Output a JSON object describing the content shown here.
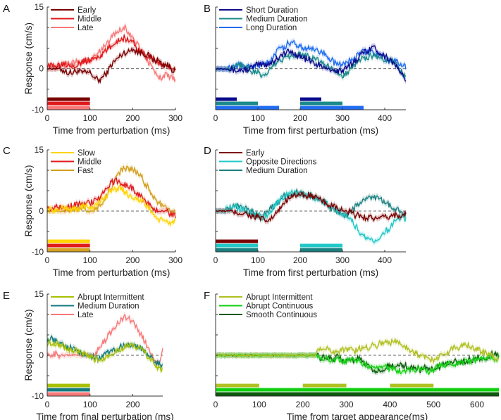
{
  "chart_data": [
    {
      "id": "A",
      "type": "line",
      "panel_label": "A",
      "xlabel": "Time from perturbation (ms)",
      "ylabel": "Response (cm/s)",
      "xlim": [
        0,
        300
      ],
      "ylim": [
        -10,
        15
      ],
      "x_step": 10,
      "xticks": [
        0,
        100,
        200,
        300
      ],
      "yticks": [
        -10,
        -5,
        0,
        5,
        10,
        15
      ],
      "ytick_labels": [
        "-10",
        "",
        "0",
        "",
        "",
        "15"
      ],
      "legend_position": "top-left",
      "series": [
        {
          "name": "Early",
          "color": "#7a0000",
          "values": [
            0,
            0,
            0,
            0,
            -0.5,
            -1,
            -1,
            -0.5,
            -1,
            -1,
            -1,
            -2,
            -3,
            -2,
            -1,
            1,
            2,
            3,
            4,
            4,
            5,
            4,
            4,
            3.5,
            3,
            2,
            2,
            1,
            1,
            0,
            -0.5
          ],
          "bars": [
            [
              0,
              100
            ]
          ]
        },
        {
          "name": "Middle",
          "color": "#e0191b",
          "values": [
            1,
            0.5,
            1,
            1,
            1.5,
            1,
            1,
            1,
            1.5,
            2,
            2,
            2.5,
            3,
            3.5,
            4.5,
            5.5,
            6.5,
            7,
            7.5,
            7,
            6.5,
            5,
            4,
            3.5,
            3,
            2,
            1.5,
            1,
            0.5,
            0,
            -1
          ],
          "bars": [
            [
              0,
              100
            ]
          ]
        },
        {
          "name": "Late",
          "color": "#f87878",
          "values": [
            0,
            0,
            0.5,
            0.5,
            1,
            1,
            1.5,
            1.5,
            1.5,
            2,
            2,
            3,
            4,
            5,
            6,
            7.5,
            8.5,
            9.5,
            10,
            9,
            8,
            6,
            4.5,
            3,
            1,
            -1,
            -2,
            -2,
            -1.5,
            -2,
            -2.5
          ],
          "bars": [
            [
              0,
              100
            ]
          ]
        }
      ]
    },
    {
      "id": "B",
      "type": "line",
      "panel_label": "B",
      "xlabel": "Time from first perturbation (ms)",
      "ylabel": "",
      "xlim": [
        0,
        450
      ],
      "ylim": [
        -10,
        15
      ],
      "x_step": 10,
      "xticks": [
        0,
        100,
        200,
        300,
        400
      ],
      "yticks": [
        -10,
        -5,
        0,
        5,
        10,
        15
      ],
      "ytick_labels": [
        "",
        "",
        "",
        "",
        "",
        ""
      ],
      "legend_position": "top-left",
      "series": [
        {
          "name": "Short Duration",
          "color": "#0a0a8c",
          "values": [
            0,
            0,
            0,
            0,
            -0.3,
            -0.5,
            -0.3,
            -0.3,
            0,
            0.5,
            1,
            1,
            1,
            1.5,
            2,
            3,
            3.5,
            4,
            4,
            3.5,
            3,
            2.5,
            2,
            1.5,
            1,
            0.5,
            0,
            0,
            -0.5,
            -0.5,
            -0.5,
            0,
            1,
            2,
            3,
            4,
            4.5,
            5.5,
            4.5,
            4,
            3,
            2.5,
            1.5,
            0,
            -1,
            -3.5
          ],
          "bars": [
            [
              0,
              50
            ],
            [
              200,
              250
            ]
          ]
        },
        {
          "name": "Medium Duration",
          "color": "#1a8a8a",
          "values": [
            0,
            0,
            0,
            0,
            0.5,
            1,
            1,
            0.5,
            0,
            -1,
            -1,
            -2,
            -1,
            0,
            1,
            2,
            2.5,
            3,
            3.5,
            3.5,
            3.5,
            3,
            3,
            2.5,
            2,
            1.5,
            1,
            0,
            -0.5,
            -1,
            -1.5,
            -1,
            0,
            1,
            2,
            2.5,
            3,
            3,
            3,
            2.5,
            2,
            2,
            1.5,
            0.5,
            -0.5,
            -2.5
          ],
          "bars": [
            [
              0,
              100
            ],
            [
              200,
              300
            ]
          ]
        },
        {
          "name": "Long Duration",
          "color": "#1f6cf0",
          "values": [
            0,
            0,
            0,
            0,
            0.5,
            1,
            1,
            0.5,
            0.5,
            0.5,
            0.5,
            1,
            1.5,
            2,
            3.5,
            4.5,
            5,
            6,
            6,
            6,
            5.5,
            5,
            5,
            4.5,
            4.5,
            4,
            3.5,
            2.5,
            1.5,
            1,
            1,
            1.5,
            2,
            3,
            3.5,
            4,
            4,
            4,
            3.5,
            3,
            2.5,
            2,
            2,
            1.5,
            1,
            0.5
          ],
          "bars": [
            [
              0,
              150
            ],
            [
              200,
              350
            ]
          ]
        }
      ]
    },
    {
      "id": "C",
      "type": "line",
      "panel_label": "C",
      "xlabel": "Time from perturbation (ms)",
      "ylabel": "Response (cm/s)",
      "xlim": [
        0,
        300
      ],
      "ylim": [
        -10,
        15
      ],
      "x_step": 10,
      "xticks": [
        0,
        100,
        200,
        300
      ],
      "yticks": [
        -10,
        -5,
        0,
        5,
        10,
        15
      ],
      "ytick_labels": [
        "-10",
        "",
        "0",
        "",
        "",
        "15"
      ],
      "legend_position": "top-left",
      "series": [
        {
          "name": "Slow",
          "color": "#ffd400",
          "values": [
            0,
            0.5,
            0,
            0.5,
            1,
            0.5,
            0.5,
            0.5,
            1,
            1,
            1,
            1,
            2,
            3,
            4,
            5,
            5.5,
            5.5,
            5,
            4,
            3.5,
            3,
            2.5,
            1.5,
            0.5,
            -1,
            -2,
            -2.5,
            -2.5,
            -3,
            -2
          ],
          "bars": [
            [
              0,
              100
            ]
          ]
        },
        {
          "name": "Middle",
          "color": "#e0191b",
          "values": [
            0.5,
            0.5,
            1,
            1,
            1,
            1,
            1.5,
            1.5,
            2,
            2,
            2,
            2.5,
            3,
            4.5,
            5.5,
            7,
            7.5,
            7,
            6.5,
            6,
            5.5,
            4.5,
            3.5,
            2.5,
            1.5,
            0.5,
            0,
            0,
            0,
            -1,
            -1
          ],
          "bars": [
            [
              0,
              100
            ]
          ]
        },
        {
          "name": "Fast",
          "color": "#d4a020",
          "values": [
            0,
            0,
            0,
            0,
            0,
            0.5,
            0.5,
            0.5,
            1,
            0.5,
            0,
            0,
            1,
            2.5,
            4,
            6,
            8,
            9.5,
            10.5,
            10.5,
            10,
            9.5,
            8.5,
            6.5,
            5,
            3.5,
            2,
            1,
            0.5,
            0,
            -0.5
          ],
          "bars": [
            [
              0,
              100
            ]
          ]
        }
      ]
    },
    {
      "id": "D",
      "type": "line",
      "panel_label": "D",
      "xlabel": "Time from first perturbation (ms)",
      "ylabel": "",
      "xlim": [
        0,
        450
      ],
      "ylim": [
        -10,
        15
      ],
      "x_step": 10,
      "xticks": [
        0,
        100,
        200,
        300,
        400
      ],
      "yticks": [
        -10,
        -5,
        0,
        5,
        10,
        15
      ],
      "ytick_labels": [
        "",
        "",
        "",
        "",
        "",
        ""
      ],
      "legend_position": "top-left",
      "series": [
        {
          "name": "Early",
          "color": "#7a0000",
          "values": [
            0,
            0,
            0,
            0,
            0,
            -0.5,
            -0.5,
            -0.5,
            -1,
            -1.5,
            -1.5,
            -2,
            -2.5,
            -2,
            -1,
            0,
            2,
            3,
            4,
            4,
            4,
            3.5,
            4,
            3.5,
            3,
            2.5,
            2,
            1.5,
            1,
            0.5,
            0,
            0,
            -0.5,
            -1,
            -1,
            -1.5,
            -1.5,
            -1.5,
            -2,
            -2,
            -1.5,
            -1.5,
            -1,
            -1,
            -1,
            -1
          ],
          "bars": [
            [
              0,
              100
            ]
          ]
        },
        {
          "name": "Opposite Directions",
          "color": "#20c8c8",
          "values": [
            0,
            0,
            0,
            0.5,
            1,
            1,
            0.5,
            0,
            -0.5,
            -1,
            -1,
            -1.5,
            -1,
            0,
            1.5,
            2.5,
            3.5,
            4,
            4.5,
            4.5,
            4.5,
            4,
            4,
            3.5,
            3,
            2.5,
            2,
            1,
            0.5,
            0,
            -0.5,
            -1,
            -2,
            -3.5,
            -5,
            -6,
            -7,
            -7.5,
            -7,
            -6,
            -5,
            -4.5,
            -3,
            -2,
            -1.5,
            -2
          ],
          "bars": [
            [
              0,
              100
            ],
            [
              200,
              300
            ]
          ]
        },
        {
          "name": "Medium Duration",
          "color": "#1a8080",
          "values": [
            0,
            0,
            0,
            0.5,
            1,
            1,
            1,
            0.5,
            0,
            -0.5,
            -1,
            -1,
            -0.5,
            0.5,
            1.5,
            2.5,
            3.5,
            4,
            4.5,
            4.5,
            4.5,
            4,
            4,
            3.5,
            3,
            2.5,
            2,
            1,
            0.5,
            0,
            -0.5,
            -1,
            0,
            1,
            2,
            2.5,
            3,
            3.5,
            3,
            3,
            2,
            1.5,
            1,
            0.5,
            0,
            -1
          ],
          "bars": [
            [
              0,
              100
            ],
            [
              200,
              300
            ]
          ]
        }
      ]
    },
    {
      "id": "E",
      "type": "line",
      "panel_label": "E",
      "xlabel": "Time from final perturbation (ms)",
      "ylabel": "Response (cm/s)",
      "xlim": [
        0,
        270
      ],
      "ylim": [
        -10,
        15
      ],
      "x_step": 10,
      "xticks": [
        0,
        100,
        200
      ],
      "yticks": [
        -10,
        -5,
        0,
        5,
        10,
        15
      ],
      "ytick_labels": [
        "-10",
        "",
        "0",
        "",
        "",
        "15"
      ],
      "legend_position": "top-left",
      "series": [
        {
          "name": "Abrupt Intermittent",
          "color": "#a8c000",
          "values": [
            3,
            3,
            3,
            2.5,
            2,
            1.5,
            1,
            1,
            0.5,
            0,
            -0.5,
            -1,
            -1,
            -1,
            0,
            0.5,
            1,
            1.5,
            2,
            2.5,
            2,
            2,
            1.5,
            0.5,
            -1,
            -2,
            -3,
            -4
          ],
          "bars": [
            [
              0,
              100
            ]
          ]
        },
        {
          "name": "Medium Duration",
          "color": "#147a80",
          "values": [
            4,
            4,
            3.5,
            3,
            2.5,
            2,
            1.5,
            1,
            0.5,
            0,
            0,
            -0.5,
            -1,
            -0.5,
            0.5,
            1,
            1.5,
            2,
            2.5,
            3,
            2.5,
            2,
            1.5,
            0.5,
            -0.5,
            -1.5,
            -2,
            -3
          ],
          "bars": [
            [
              0,
              100
            ]
          ]
        },
        {
          "name": "Late",
          "color": "#f87878",
          "values": [
            0.5,
            0,
            0.5,
            0,
            0,
            0,
            0,
            0,
            0,
            0,
            0,
            0,
            1.5,
            3,
            4.5,
            6,
            7.5,
            8.5,
            9.5,
            9,
            8,
            6.5,
            5,
            3,
            1,
            -1,
            -2,
            1
          ],
          "bars": [
            [
              0,
              100
            ]
          ]
        }
      ]
    },
    {
      "id": "F",
      "type": "line",
      "panel_label": "F",
      "xlabel": "Time from target appearance(ms)",
      "ylabel": "",
      "xlim": [
        0,
        650
      ],
      "ylim": [
        -10,
        15
      ],
      "x_step": 10,
      "xticks": [
        0,
        100,
        200,
        300,
        400,
        500,
        600
      ],
      "yticks": [
        -10,
        -5,
        0,
        5,
        10,
        15
      ],
      "ytick_labels": [
        "",
        "",
        "",
        "",
        "",
        ""
      ],
      "legend_position": "top-left",
      "series": [
        {
          "name": "Abrupt Intermittent",
          "color": "#b0c020",
          "values": [
            0,
            0,
            0,
            0,
            0,
            0,
            0,
            0,
            0,
            0,
            0,
            0,
            0,
            0,
            0,
            0,
            0,
            0,
            0,
            0,
            0,
            0,
            0,
            0.5,
            2,
            2,
            1,
            1,
            1,
            1.5,
            1.5,
            1.5,
            1,
            1.5,
            2,
            2,
            2.5,
            2.5,
            3,
            3.5,
            3,
            3.5,
            3,
            2.5,
            2,
            1,
            0.5,
            0,
            -0.5,
            -1,
            -1,
            -0.5,
            0,
            0.5,
            1.5,
            2,
            2,
            3,
            2.5,
            2,
            1.5,
            1,
            0.5,
            0,
            -0.5,
            -1
          ],
          "bars": [
            [
              0,
              100
            ],
            [
              200,
              300
            ],
            [
              400,
              500
            ]
          ]
        },
        {
          "name": "Abrupt Continuous",
          "color": "#10d010",
          "values": [
            0,
            0,
            0,
            0,
            0,
            0,
            0,
            0,
            0,
            0,
            0,
            0,
            0,
            0,
            0,
            0,
            0,
            0,
            0,
            0,
            0,
            0,
            0,
            0,
            -0.5,
            -0.5,
            -1,
            -1,
            -1,
            -1.5,
            -1.5,
            -1,
            -1.5,
            -1.5,
            -2,
            -3,
            -3,
            -3,
            -3,
            -3,
            -3.5,
            -3,
            -4,
            -3.5,
            -3.5,
            -3.5,
            -3.5,
            -3,
            -3.5,
            -4,
            -3.5,
            -2.5,
            -2.5,
            -2,
            -2,
            -2,
            -2,
            -1.5,
            -1.5,
            -1.5,
            -1,
            -1,
            -1,
            -0.5,
            -1,
            -0.5
          ],
          "bars": [
            [
              0,
              650
            ]
          ]
        },
        {
          "name": "Smooth Continuous",
          "color": "#0a5a0a",
          "values": [
            0,
            0,
            0,
            0,
            0,
            0,
            0,
            0,
            0,
            0,
            0,
            0,
            0,
            0,
            0,
            0,
            0,
            0,
            0,
            0,
            0,
            0,
            0,
            0,
            -0.5,
            -0.5,
            -0.5,
            -1,
            -0.5,
            -1,
            -1,
            -1.5,
            -1,
            -1,
            -2,
            -2.5,
            -4,
            -4,
            -3.5,
            -3,
            -2.5,
            -2.5,
            -2,
            -2.5,
            -2.5,
            -3,
            -3,
            -3.5,
            -3,
            -3.5,
            -3.5,
            -3,
            -2.5,
            -2,
            -2,
            -1.5,
            -1.5,
            -1.5,
            -1,
            -1,
            -0.5,
            -1,
            -0.5,
            0,
            0.5,
            0
          ],
          "bars": [
            [
              0,
              650
            ]
          ]
        }
      ]
    }
  ]
}
